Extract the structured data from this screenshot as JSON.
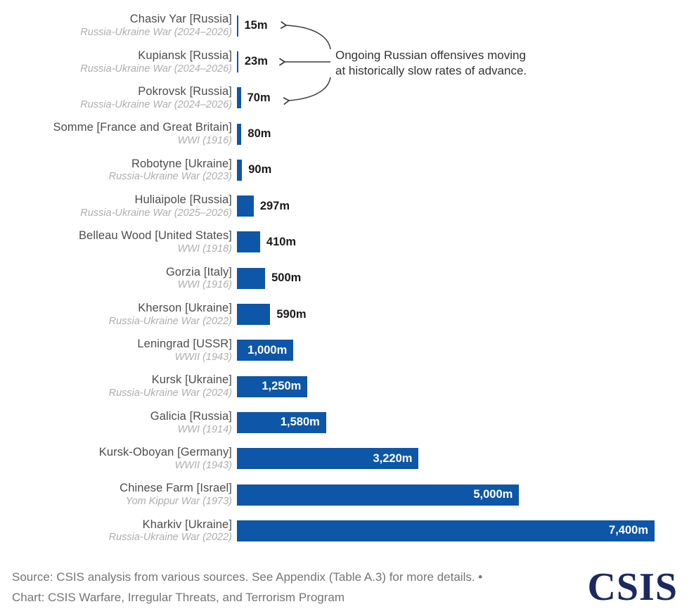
{
  "chart_data": {
    "type": "bar",
    "orientation": "horizontal",
    "unit": "meters per day of advance",
    "xlim": [
      0,
      7400
    ],
    "grid": false,
    "legend": "none",
    "items": [
      {
        "battle": "Chasiv Yar [Russia]",
        "war": "Russia-Ukraine War (2024–2026)",
        "value": 15,
        "label": "15m"
      },
      {
        "battle": "Kupiansk [Russia]",
        "war": "Russia-Ukraine War (2024–2026)",
        "value": 23,
        "label": "23m"
      },
      {
        "battle": "Pokrovsk [Russia]",
        "war": "Russia-Ukraine War (2024–2026)",
        "value": 70,
        "label": "70m"
      },
      {
        "battle": "Somme [France and Great Britain]",
        "war": "WWI (1916)",
        "value": 80,
        "label": "80m"
      },
      {
        "battle": "Robotyne [Ukraine]",
        "war": "Russia-Ukraine War (2023)",
        "value": 90,
        "label": "90m"
      },
      {
        "battle": "Huliaipole [Russia]",
        "war": "Russia-Ukraine War (2025–2026)",
        "value": 297,
        "label": "297m"
      },
      {
        "battle": "Belleau Wood [United States]",
        "war": "WWI (1918)",
        "value": 410,
        "label": "410m"
      },
      {
        "battle": "Gorzia [Italy]",
        "war": "WWI (1916)",
        "value": 500,
        "label": "500m"
      },
      {
        "battle": "Kherson [Ukraine]",
        "war": "Russia-Ukraine War (2022)",
        "value": 590,
        "label": "590m"
      },
      {
        "battle": "Leningrad [USSR]",
        "war": "WWII (1943)",
        "value": 1000,
        "label": "1,000m"
      },
      {
        "battle": "Kursk [Ukraine]",
        "war": "Russia-Ukraine War (2024)",
        "value": 1250,
        "label": "1,250m"
      },
      {
        "battle": "Galicia [Russia]",
        "war": "WWI (1914)",
        "value": 1580,
        "label": "1,580m"
      },
      {
        "battle": "Kursk-Oboyan [Germany]",
        "war": "WWII (1943)",
        "value": 3220,
        "label": "3,220m"
      },
      {
        "battle": "Chinese Farm [Israel]",
        "war": "Yom Kippur War (1973)",
        "value": 5000,
        "label": "5,000m"
      },
      {
        "battle": "Kharkiv [Ukraine]",
        "war": "Russia-Ukraine War (2022)",
        "value": 7400,
        "label": "7,400m"
      }
    ],
    "annotation": "Ongoing Russian offensives moving at historically slow rates of advance.",
    "annotation_targets": [
      "Chasiv Yar [Russia]",
      "Kupiansk [Russia]",
      "Pokrovsk [Russia]"
    ]
  },
  "annotation": {
    "line1": "Ongoing Russian offensives moving",
    "line2": "at historically slow rates of advance."
  },
  "footer": {
    "source": "Source: CSIS analysis from various sources. See Appendix (Table A.3) for more details. •",
    "chart_credit": "Chart: CSIS Warfare, Irregular Threats, and Terrorism Program",
    "logo": "CSIS"
  },
  "colors": {
    "bar": "#0E56A8",
    "value_inside": "#FFFFFF",
    "value_outside": "#1A1A1A",
    "label": "#4D4D4D",
    "sublabel": "#AEAEAE",
    "annotation": "#333333",
    "arrow": "#3A3A3A",
    "footer": "#757575",
    "logo": "#1B2A5E",
    "bg": "#FFFFFF"
  }
}
